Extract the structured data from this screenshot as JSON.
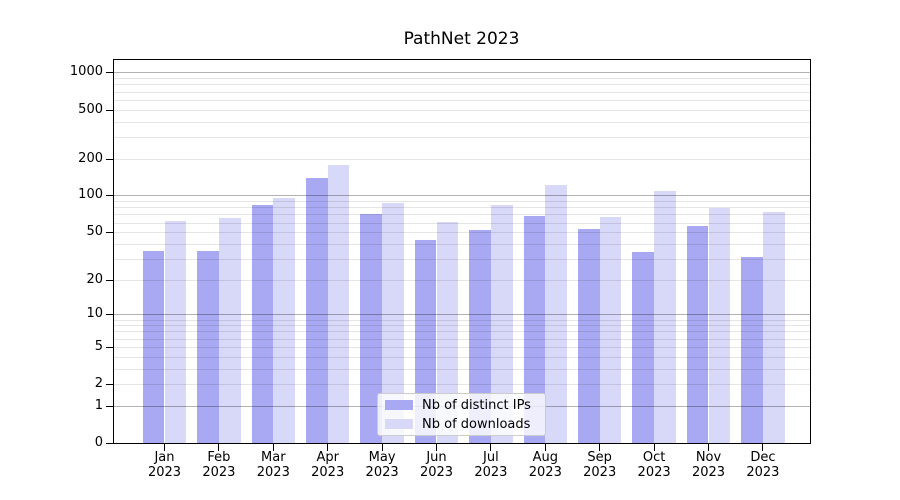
{
  "title": "PathNet 2023",
  "chart_data": {
    "type": "bar",
    "title": "PathNet 2023",
    "x_categories_months": [
      "Jan",
      "Feb",
      "Mar",
      "Apr",
      "May",
      "Jun",
      "Jul",
      "Aug",
      "Sep",
      "Oct",
      "Nov",
      "Dec"
    ],
    "x_year": "2023",
    "series": [
      {
        "name": "Nb of distinct IPs",
        "color": "#a9a9f3",
        "values": [
          35,
          35,
          83,
          140,
          71,
          43,
          52,
          68,
          53,
          34,
          56,
          31
        ]
      },
      {
        "name": "Nb of downloads",
        "color": "#d8d9f8",
        "values": [
          62,
          65,
          95,
          176,
          87,
          61,
          83,
          122,
          66,
          109,
          79,
          73
        ]
      }
    ],
    "y_scale": "log10(1+x)",
    "y_ticks": [
      0,
      1,
      2,
      5,
      10,
      20,
      50,
      100,
      200,
      500,
      1000
    ],
    "ylim": [
      0,
      1300
    ],
    "grid": "major decades dark, minor mantissas faint, drawn over bars",
    "legend_position": "lower center"
  }
}
